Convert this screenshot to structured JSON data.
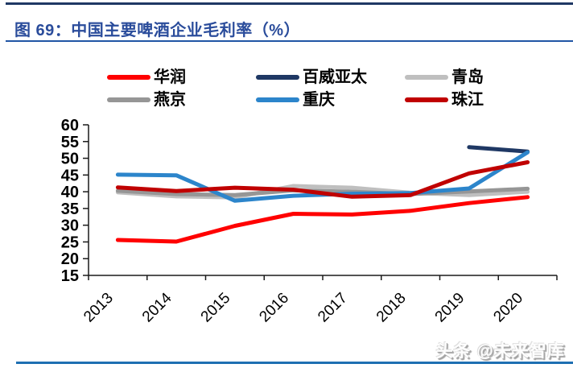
{
  "header": {
    "title": "图 69：中国主要啤酒企业毛利率（%）"
  },
  "watermark": {
    "text": "头条 @未来智库"
  },
  "theme": {
    "title_color": "#2A4C9B",
    "top_rule_color": "#1F3864",
    "title_rule_color": "#2156A5",
    "bottom_rule_color": "#1E6FB2",
    "axis_color": "#1A1A1A",
    "tick_label_color": "#000000"
  },
  "chart_data": {
    "type": "line",
    "title": "中国主要啤酒企业毛利率（%）",
    "xlabel": "",
    "ylabel": "",
    "categories": [
      "2013",
      "2014",
      "2015",
      "2016",
      "2017",
      "2018",
      "2019",
      "2020"
    ],
    "ylim": [
      15,
      60
    ],
    "ytick_step": 5,
    "yticks": [
      60,
      55,
      50,
      45,
      40,
      35,
      30,
      25,
      20,
      15
    ],
    "grid": false,
    "legend_position": "top",
    "line_width": 5,
    "series": [
      {
        "name": "华润",
        "color": "#FF0000",
        "values": [
          25.6,
          25.1,
          29.8,
          33.4,
          33.2,
          34.3,
          36.6,
          38.4
        ]
      },
      {
        "name": "百威亚太",
        "color": "#1F3864",
        "values": [
          null,
          null,
          null,
          null,
          null,
          null,
          53.3,
          52.0
        ]
      },
      {
        "name": "青岛",
        "color": "#BFBFBF",
        "values": [
          39.8,
          38.6,
          38.3,
          41.7,
          41.2,
          39.7,
          39.0,
          40.0
        ]
      },
      {
        "name": "燕京",
        "color": "#969696",
        "values": [
          40.3,
          39.3,
          39.0,
          40.4,
          40.0,
          39.3,
          40.1,
          40.9
        ]
      },
      {
        "name": "重庆",
        "color": "#2C85CB",
        "values": [
          45.1,
          44.9,
          37.3,
          38.8,
          39.4,
          39.6,
          41.0,
          51.8
        ]
      },
      {
        "name": "珠江",
        "color": "#C00000",
        "values": [
          41.3,
          40.2,
          41.2,
          40.6,
          38.5,
          39.0,
          45.5,
          48.8
        ]
      }
    ]
  }
}
